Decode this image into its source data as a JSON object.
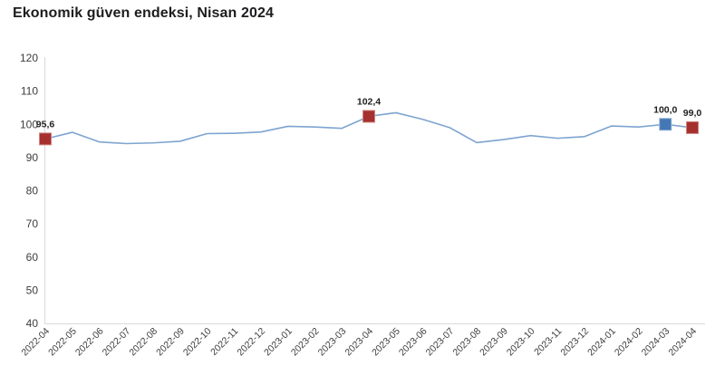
{
  "title": "Ekonomik güven endeksi, Nisan 2024",
  "chart_data": {
    "type": "line",
    "title": "Ekonomik güven endeksi, Nisan 2024",
    "xlabel": "",
    "ylabel": "",
    "ylim": [
      40,
      120
    ],
    "yticks": [
      40,
      50,
      60,
      70,
      80,
      90,
      100,
      110,
      120
    ],
    "grid": false,
    "legend_position": "none",
    "x": [
      "2022-04",
      "2022-05",
      "2022-06",
      "2022-07",
      "2022-08",
      "2022-09",
      "2022-10",
      "2022-11",
      "2022-12",
      "2023-01",
      "2023-02",
      "2023-03",
      "2023-04",
      "2023-05",
      "2023-06",
      "2023-07",
      "2023-08",
      "2023-09",
      "2023-10",
      "2023-11",
      "2023-12",
      "2024-01",
      "2024-02",
      "2024-03",
      "2024-04"
    ],
    "series": [
      {
        "name": "Ekonomik güven endeksi",
        "values": [
          95.6,
          97.6,
          94.7,
          94.2,
          94.4,
          94.9,
          97.2,
          97.3,
          97.7,
          99.4,
          99.2,
          98.8,
          102.4,
          103.5,
          101.5,
          99.0,
          94.5,
          95.4,
          96.6,
          95.8,
          96.3,
          99.5,
          99.2,
          100.0,
          99.0
        ]
      }
    ],
    "annotations": [
      {
        "x": "2022-04",
        "value": 95.6,
        "label": "95,6",
        "marker": "square",
        "marker_color": "#a5302e",
        "marker_border": "#cf837d"
      },
      {
        "x": "2023-04",
        "value": 102.4,
        "label": "102,4",
        "marker": "square",
        "marker_color": "#a5302e",
        "marker_border": "#cf837d"
      },
      {
        "x": "2024-03",
        "value": 100.0,
        "label": "100,0",
        "marker": "square",
        "marker_color": "#4477b5",
        "marker_border": "#8fb2d9"
      },
      {
        "x": "2024-04",
        "value": 99.0,
        "label": "99,0",
        "marker": "square",
        "marker_color": "#a5302e",
        "marker_border": "#cf837d"
      }
    ],
    "colors": {
      "line": "#7da4d0",
      "axis": "#d9d9d9",
      "tick_text": "#3d3d3d",
      "data_label_text": "#1f1f1f"
    }
  }
}
